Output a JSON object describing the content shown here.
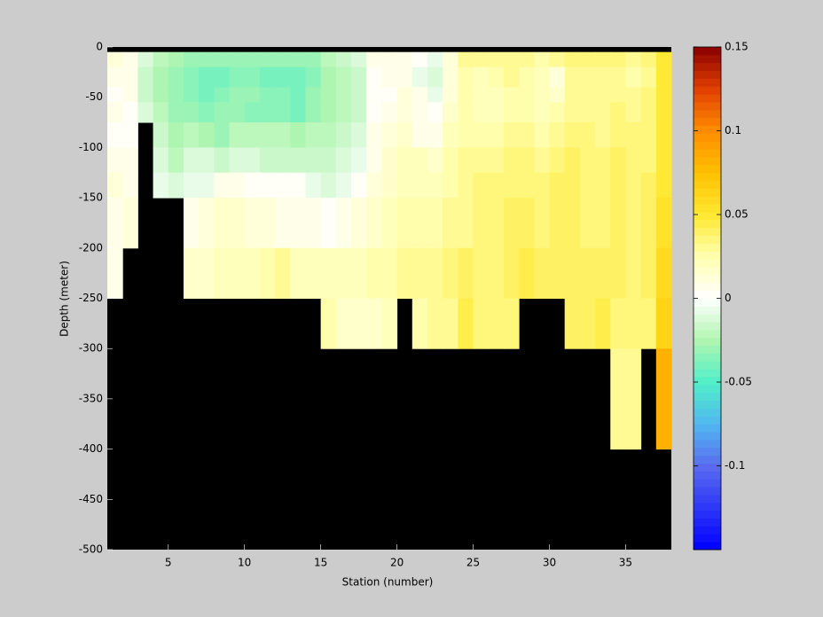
{
  "chart_data": {
    "type": "heatmap",
    "xlabel": "Station (number)",
    "ylabel": "Depth (meter)",
    "x_edges": [
      1,
      2,
      3,
      4,
      5,
      6,
      7,
      8,
      9,
      10,
      11,
      12,
      13,
      14,
      15,
      16,
      17,
      18,
      19,
      20,
      21,
      22,
      23,
      24,
      25,
      26,
      27,
      28,
      29,
      30,
      31,
      32,
      33,
      34,
      35,
      36,
      37,
      38
    ],
    "y_edges": [
      0,
      -5,
      -20,
      -40,
      -55,
      -75,
      -100,
      -125,
      -150,
      -200,
      -250,
      -300,
      -400,
      -500
    ],
    "z": [
      [
        null,
        null,
        null,
        null,
        null,
        null,
        null,
        null,
        null,
        null,
        null,
        null,
        null,
        null,
        null,
        null,
        null,
        null,
        null,
        null,
        null,
        null,
        null,
        null,
        null,
        null,
        null,
        null,
        null,
        null,
        null,
        null,
        null,
        null,
        null,
        null,
        null
      ],
      [
        0.01,
        0.008,
        -0.01,
        -0.02,
        -0.025,
        -0.03,
        -0.03,
        -0.03,
        -0.03,
        -0.03,
        -0.03,
        -0.03,
        -0.03,
        -0.03,
        -0.02,
        -0.015,
        -0.01,
        0.005,
        0.008,
        0.005,
        0,
        -0.005,
        0.01,
        0.03,
        0.03,
        0.03,
        0.03,
        0.03,
        0.025,
        0.03,
        0.035,
        0.035,
        0.035,
        0.035,
        0.03,
        0.035,
        0.05
      ],
      [
        0.005,
        0.005,
        -0.015,
        -0.025,
        -0.03,
        -0.035,
        -0.04,
        -0.04,
        -0.035,
        -0.035,
        -0.04,
        -0.04,
        -0.04,
        -0.035,
        -0.025,
        -0.02,
        -0.015,
        0,
        0.005,
        0.005,
        -0.005,
        -0.01,
        0.01,
        0.025,
        0.02,
        0.025,
        0.03,
        0.025,
        0.02,
        0.01,
        0.03,
        0.03,
        0.03,
        0.03,
        0.025,
        0.03,
        0.05
      ],
      [
        0,
        0.005,
        -0.015,
        -0.025,
        -0.03,
        -0.035,
        -0.04,
        -0.035,
        -0.03,
        -0.03,
        -0.035,
        -0.035,
        -0.04,
        -0.03,
        -0.025,
        -0.02,
        -0.015,
        0,
        0.003,
        0.01,
        0.005,
        -0.005,
        0.01,
        0.025,
        0.02,
        0.02,
        0.025,
        0.025,
        0.02,
        0.015,
        0.03,
        0.03,
        0.03,
        0.03,
        0.03,
        0.035,
        0.05
      ],
      [
        0.005,
        0.003,
        -0.01,
        -0.02,
        -0.03,
        -0.03,
        -0.035,
        -0.03,
        -0.03,
        -0.035,
        -0.035,
        -0.035,
        -0.04,
        -0.03,
        -0.025,
        -0.02,
        -0.015,
        0,
        0.005,
        0.01,
        0.005,
        0,
        0.015,
        0.025,
        0.02,
        0.02,
        0.025,
        0.025,
        0.02,
        0.025,
        0.03,
        0.03,
        0.03,
        0.035,
        0.03,
        0.035,
        0.05
      ],
      [
        0,
        0.003,
        null,
        -0.015,
        -0.025,
        -0.02,
        -0.025,
        -0.03,
        -0.02,
        -0.02,
        -0.02,
        -0.02,
        -0.025,
        -0.02,
        -0.02,
        -0.015,
        -0.01,
        0.005,
        0.01,
        0.015,
        0.005,
        0.005,
        0.02,
        0.025,
        0.025,
        0.025,
        0.03,
        0.03,
        0.025,
        0.03,
        0.035,
        0.035,
        0.03,
        0.035,
        0.035,
        0.035,
        0.05
      ],
      [
        0.005,
        0.005,
        null,
        -0.01,
        -0.02,
        -0.01,
        -0.01,
        -0.015,
        -0.01,
        -0.01,
        -0.015,
        -0.015,
        -0.015,
        -0.015,
        -0.015,
        -0.01,
        -0.005,
        0.005,
        0.015,
        0.02,
        0.02,
        0.015,
        0.025,
        0.03,
        0.03,
        0.03,
        0.035,
        0.035,
        0.03,
        0.035,
        0.04,
        0.035,
        0.035,
        0.04,
        0.035,
        0.035,
        0.05
      ],
      [
        0.01,
        0.005,
        null,
        -0.005,
        -0.01,
        -0.005,
        -0.005,
        0.005,
        0.005,
        0.002,
        0.002,
        0.002,
        0,
        -0.005,
        -0.01,
        -0.005,
        0,
        0.01,
        0.015,
        0.02,
        0.02,
        0.02,
        0.025,
        0.03,
        0.035,
        0.035,
        0.035,
        0.035,
        0.035,
        0.04,
        0.04,
        0.035,
        0.035,
        0.04,
        0.035,
        0.04,
        0.05
      ],
      [
        0.005,
        0.01,
        null,
        null,
        null,
        0.005,
        0.01,
        0.015,
        0.015,
        0.01,
        0.01,
        0.008,
        0.005,
        0.005,
        0,
        0.005,
        0.01,
        0.015,
        0.02,
        0.025,
        0.025,
        0.025,
        0.03,
        0.03,
        0.035,
        0.035,
        0.04,
        0.04,
        0.035,
        0.04,
        0.04,
        0.035,
        0.035,
        0.04,
        0.035,
        0.04,
        0.055
      ],
      [
        0.005,
        null,
        null,
        null,
        null,
        0.015,
        0.015,
        0.02,
        0.02,
        0.02,
        0.025,
        0.03,
        0.02,
        0.02,
        0.02,
        0.02,
        0.02,
        0.025,
        0.025,
        0.03,
        0.03,
        0.03,
        0.035,
        0.04,
        0.035,
        0.035,
        0.04,
        0.045,
        0.04,
        0.04,
        0.04,
        0.04,
        0.04,
        0.04,
        0.035,
        0.04,
        0.06
      ],
      [
        null,
        null,
        null,
        null,
        null,
        null,
        null,
        null,
        null,
        null,
        null,
        null,
        null,
        null,
        0.025,
        0.015,
        0.015,
        0.015,
        0.02,
        null,
        0.025,
        0.03,
        0.03,
        0.045,
        0.035,
        0.035,
        0.035,
        null,
        null,
        null,
        0.04,
        0.04,
        0.045,
        0.035,
        0.035,
        0.035,
        0.065
      ],
      [
        null,
        null,
        null,
        null,
        null,
        null,
        null,
        null,
        null,
        null,
        null,
        null,
        null,
        null,
        null,
        null,
        null,
        null,
        null,
        null,
        null,
        null,
        null,
        null,
        null,
        null,
        null,
        null,
        null,
        null,
        null,
        null,
        null,
        0.03,
        0.03,
        null,
        0.08
      ],
      [
        null,
        null,
        null,
        null,
        null,
        null,
        null,
        null,
        null,
        null,
        null,
        null,
        null,
        null,
        null,
        null,
        null,
        null,
        null,
        null,
        null,
        null,
        null,
        null,
        null,
        null,
        null,
        null,
        null,
        null,
        null,
        null,
        null,
        null,
        null,
        null,
        null
      ]
    ],
    "xlim": [
      1,
      38
    ],
    "xticks": [
      5,
      10,
      15,
      20,
      25,
      30,
      35
    ],
    "ylim": [
      -500,
      0
    ],
    "yticks": [
      0,
      -50,
      -100,
      -150,
      -200,
      -250,
      -300,
      -350,
      -400,
      -450,
      -500
    ],
    "clim": [
      -0.15,
      0.15
    ],
    "cticks": [
      0.15,
      0.1,
      0.05,
      0,
      -0.05,
      -0.1
    ],
    "colormap": [
      [
        -0.15,
        "#0000ff"
      ],
      [
        -0.1,
        "#5a6cf0"
      ],
      [
        -0.075,
        "#50b8f0"
      ],
      [
        -0.05,
        "#50f0c8"
      ],
      [
        -0.025,
        "#b0f5b0"
      ],
      [
        0,
        "#ffffff"
      ],
      [
        0.025,
        "#ffffb0"
      ],
      [
        0.05,
        "#ffe830"
      ],
      [
        0.075,
        "#ffc000"
      ],
      [
        0.1,
        "#ff8c00"
      ],
      [
        0.125,
        "#e04000"
      ],
      [
        0.15,
        "#8b0000"
      ]
    ],
    "colormap_levels": 64,
    "missing_color": "#000000"
  }
}
